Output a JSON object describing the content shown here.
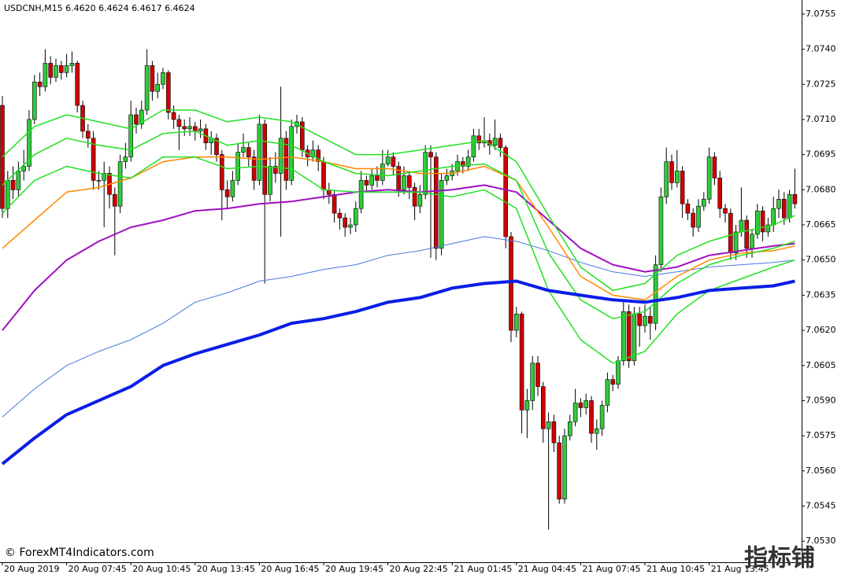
{
  "chart_data": {
    "type": "candlestick",
    "header": "USDCNH,M15  6.4620 6.4624 6.4617 6.4624",
    "watermark": "© ForexMT4Indicators.com",
    "corner_logo": "指标铺",
    "up_color": "#2fcc3a",
    "down_color": "#d00000",
    "wick_color": "#000000",
    "ylim": [
      7.0521,
      7.0761
    ],
    "yticks": [
      7.0755,
      {
        "value": 7.074,
        "label": "7.0740"
      },
      7.0725,
      {
        "value": 7.071,
        "label": "7.0710"
      },
      7.0695,
      {
        "value": 7.068,
        "label": "7.0680"
      },
      7.0665,
      {
        "value": 7.065,
        "label": "7.0650"
      },
      7.0635,
      {
        "value": 7.062,
        "label": "7.0620"
      },
      7.0605,
      {
        "value": 7.059,
        "label": "7.0590"
      },
      7.0575,
      {
        "value": 7.056,
        "label": "7.0560"
      },
      7.0545,
      {
        "value": 7.053,
        "label": "7.0530"
      }
    ],
    "categories": [
      "20 Aug 2019",
      null,
      null,
      null,
      null,
      null,
      null,
      null,
      null,
      null,
      null,
      null,
      "20 Aug 07:45",
      null,
      null,
      null,
      null,
      null,
      null,
      null,
      null,
      null,
      null,
      null,
      "20 Aug 10:45",
      null,
      null,
      null,
      null,
      null,
      null,
      null,
      null,
      null,
      null,
      null,
      "20 Aug 13:45",
      null,
      null,
      null,
      null,
      null,
      null,
      null,
      null,
      null,
      null,
      null,
      "20 Aug 16:45",
      null,
      null,
      null,
      null,
      null,
      null,
      null,
      null,
      null,
      null,
      null,
      "20 Aug 19:45",
      null,
      null,
      null,
      null,
      null,
      null,
      null,
      null,
      null,
      null,
      null,
      "20 Aug 22:45",
      null,
      null,
      null,
      null,
      null,
      null,
      null,
      null,
      null,
      null,
      null,
      "21 Aug 01:45",
      null,
      null,
      null,
      null,
      null,
      null,
      null,
      null,
      null,
      null,
      null,
      "21 Aug 04:45",
      null,
      null,
      null,
      null,
      null,
      null,
      null,
      null,
      null,
      null,
      null,
      "21 Aug 07:45",
      null,
      null,
      null,
      null,
      null,
      null,
      null,
      null,
      null,
      null,
      null,
      "21 Aug 10:45",
      null,
      null,
      null,
      null,
      null,
      null,
      null,
      null,
      null,
      null,
      null,
      "21 Aug 13:45",
      null,
      null,
      null,
      null,
      null,
      null,
      null,
      null,
      null,
      null,
      null,
      null,
      null,
      null,
      null,
      null
    ],
    "open": [
      7.0716,
      7.0672,
      7.0684,
      7.068,
      7.0688,
      7.069,
      7.071,
      7.0726,
      7.0724,
      7.0734,
      7.0728,
      7.0733,
      7.073,
      7.0733,
      7.0734,
      7.0716,
      7.0705,
      7.0702,
      7.0684,
      7.0684,
      7.0687,
      7.0678,
      7.0673,
      7.0692,
      7.0694,
      7.0712,
      7.0708,
      7.0714,
      7.0733,
      7.0722,
      7.0725,
      7.073,
      7.0713,
      7.071,
      7.0707,
      7.0706,
      7.0707,
      7.0705,
      7.0706,
      7.07,
      7.0702,
      7.0695,
      7.068,
      7.0677,
      7.0684,
      7.0696,
      7.0698,
      7.0694,
      7.0684,
      7.0708,
      7.0678,
      7.069,
      7.0687,
      7.0702,
      7.0684,
      7.0707,
      7.0709,
      7.0697,
      7.0694,
      7.0697,
      7.0692,
      7.068,
      7.0678,
      7.067,
      7.0668,
      7.0664,
      7.0665,
      7.0672,
      7.0684,
      7.0682,
      7.0686,
      7.0684,
      7.0691,
      7.0694,
      7.069,
      7.068,
      7.0686,
      7.0681,
      7.0673,
      7.0678,
      7.0696,
      7.0694,
      7.0655,
      7.0684,
      7.0686,
      7.0688,
      7.0692,
      7.069,
      7.0694,
      7.0703,
      7.07,
      7.0701,
      7.0699,
      7.0702,
      7.0698,
      7.066,
      7.062,
      7.0627,
      7.0586,
      7.059,
      7.0606,
      7.0596,
      7.0578,
      7.0581,
      7.0572,
      7.0548,
      7.0575,
      7.0581,
      7.0589,
      7.0587,
      7.059,
      7.0576,
      7.0578,
      7.0588,
      7.0599,
      7.0597,
      7.0607,
      7.0628,
      7.0607,
      7.0627,
      7.0622,
      7.0626,
      7.0623,
      7.0648,
      7.0677,
      7.0692,
      7.0683,
      7.0688,
      7.0674,
      7.067,
      7.0664,
      7.0673,
      7.0676,
      7.0694,
      7.0685,
      7.0672,
      7.067,
      7.0653,
      7.0662,
      7.0667,
      7.0655,
      7.0661,
      7.0671,
      7.0662,
      7.0665,
      7.0672,
      7.0676,
      7.0668,
      7.0678
    ],
    "high": [
      7.072,
      7.0688,
      7.069,
      7.0692,
      7.0697,
      7.0714,
      7.0729,
      7.073,
      7.074,
      7.0737,
      7.0736,
      7.0735,
      7.0738,
      7.0739,
      7.0735,
      7.0718,
      7.0708,
      7.0705,
      7.0688,
      7.0692,
      7.069,
      7.0681,
      7.0695,
      7.07,
      7.0718,
      7.0715,
      7.0718,
      7.074,
      7.0735,
      7.073,
      7.0732,
      7.0731,
      7.0716,
      7.0712,
      7.071,
      7.0711,
      7.0709,
      7.071,
      7.0708,
      7.0705,
      7.0704,
      7.0697,
      7.0684,
      7.0688,
      7.07,
      7.0704,
      7.07,
      7.0697,
      7.0712,
      7.071,
      7.0694,
      7.0696,
      7.0724,
      7.0705,
      7.071,
      7.0712,
      7.0711,
      7.0699,
      7.0701,
      7.0699,
      7.0694,
      7.0683,
      7.068,
      7.0672,
      7.067,
      7.0668,
      7.0675,
      7.0688,
      7.0686,
      7.0689,
      7.069,
      7.0697,
      7.0697,
      7.0696,
      7.0692,
      7.069,
      7.0688,
      7.0683,
      7.0682,
      7.0699,
      7.0699,
      7.0696,
      7.0687,
      7.0689,
      7.0691,
      7.0695,
      7.0694,
      7.0697,
      7.0706,
      7.0706,
      7.0711,
      7.0704,
      7.071,
      7.0704,
      7.0699,
      7.0662,
      7.063,
      7.0628,
      7.0595,
      7.0609,
      7.0609,
      7.0598,
      7.0585,
      7.0584,
      7.0575,
      7.0578,
      7.0584,
      7.0595,
      7.0591,
      7.0593,
      7.0592,
      7.0582,
      7.059,
      7.0602,
      7.0601,
      7.0609,
      7.0632,
      7.0631,
      7.063,
      7.063,
      7.0631,
      7.063,
      7.0652,
      7.0681,
      7.0698,
      7.0695,
      7.0697,
      7.069,
      7.0676,
      7.0672,
      7.0676,
      7.0679,
      7.0698,
      7.0696,
      7.0688,
      7.0674,
      7.0672,
      7.0665,
      7.0681,
      7.0669,
      7.0663,
      7.0674,
      7.0673,
      7.0668,
      7.0677,
      7.068,
      7.0679,
      7.068,
      7.0689
    ],
    "low": [
      7.0668,
      7.0668,
      7.0676,
      7.0677,
      7.0684,
      7.0688,
      7.0708,
      7.072,
      7.0722,
      7.0725,
      7.0726,
      7.0727,
      7.0728,
      7.073,
      7.0713,
      7.0702,
      7.0698,
      7.068,
      7.068,
      7.0664,
      7.0672,
      7.0652,
      7.067,
      7.0689,
      7.0692,
      7.0704,
      7.0706,
      7.0712,
      7.0718,
      7.0719,
      7.0723,
      7.071,
      7.0706,
      7.0697,
      7.0703,
      7.0703,
      7.0701,
      7.0702,
      7.0697,
      7.0695,
      7.0692,
      7.0667,
      7.0672,
      7.0675,
      7.0682,
      7.0694,
      7.069,
      7.068,
      7.0682,
      7.064,
      7.0675,
      7.0683,
      7.066,
      7.068,
      7.0682,
      7.0704,
      7.0694,
      7.069,
      7.0692,
      7.0688,
      7.0676,
      7.0674,
      7.0666,
      7.0663,
      7.066,
      7.0661,
      7.0662,
      7.067,
      7.0679,
      7.068,
      7.0681,
      7.0682,
      7.069,
      7.0686,
      7.0677,
      7.0678,
      7.0676,
      7.0667,
      7.067,
      7.0676,
      7.0651,
      7.065,
      7.0652,
      7.0682,
      7.0684,
      7.0686,
      7.0687,
      7.0688,
      7.0692,
      7.0697,
      7.0698,
      7.0695,
      7.0697,
      7.0694,
      7.0655,
      7.0615,
      7.0617,
      7.0576,
      7.0574,
      7.0586,
      7.0592,
      7.0572,
      7.0535,
      7.0568,
      7.0546,
      7.0546,
      7.0573,
      7.0579,
      7.0583,
      7.0584,
      7.0572,
      7.0569,
      7.0575,
      7.0585,
      7.0594,
      7.0595,
      7.0605,
      7.0604,
      7.0605,
      7.0613,
      7.0619,
      7.0616,
      7.062,
      7.0645,
      7.0674,
      7.068,
      7.0681,
      7.0668,
      7.0667,
      7.066,
      7.0662,
      7.0671,
      7.0674,
      7.0682,
      7.0668,
      7.0666,
      7.065,
      7.065,
      7.066,
      7.0651,
      7.0651,
      7.0659,
      7.0658,
      7.066,
      7.0662,
      7.0668,
      7.0665,
      7.0666,
      7.0672
    ],
    "close": [
      7.0672,
      7.0684,
      7.068,
      7.0688,
      7.069,
      7.071,
      7.0726,
      7.0724,
      7.0734,
      7.0728,
      7.0733,
      7.073,
      7.0733,
      7.0734,
      7.0716,
      7.0705,
      7.0702,
      7.0684,
      7.0684,
      7.0687,
      7.0678,
      7.0673,
      7.0692,
      7.0694,
      7.0712,
      7.0708,
      7.0714,
      7.0733,
      7.0722,
      7.0725,
      7.073,
      7.0713,
      7.071,
      7.0707,
      7.0706,
      7.0707,
      7.0705,
      7.0706,
      7.07,
      7.0702,
      7.0695,
      7.068,
      7.0677,
      7.0684,
      7.0696,
      7.0698,
      7.0694,
      7.0684,
      7.0708,
      7.0678,
      7.069,
      7.0687,
      7.0702,
      7.0684,
      7.0707,
      7.0709,
      7.0697,
      7.0694,
      7.0697,
      7.0692,
      7.068,
      7.0678,
      7.067,
      7.0668,
      7.0664,
      7.0665,
      7.0672,
      7.0684,
      7.0682,
      7.0686,
      7.0684,
      7.0691,
      7.0694,
      7.069,
      7.068,
      7.0686,
      7.0681,
      7.0673,
      7.0678,
      7.0696,
      7.0694,
      7.0655,
      7.0684,
      7.0686,
      7.0688,
      7.0692,
      7.069,
      7.0694,
      7.0703,
      7.07,
      7.0701,
      7.0699,
      7.0702,
      7.0698,
      7.066,
      7.062,
      7.0627,
      7.0586,
      7.059,
      7.0606,
      7.0596,
      7.0578,
      7.0581,
      7.0572,
      7.0548,
      7.0575,
      7.0581,
      7.0589,
      7.0587,
      7.059,
      7.0576,
      7.0578,
      7.0588,
      7.0599,
      7.0597,
      7.0607,
      7.0628,
      7.0607,
      7.0627,
      7.0622,
      7.0626,
      7.0623,
      7.0648,
      7.0677,
      7.0692,
      7.0683,
      7.0688,
      7.0674,
      7.067,
      7.0664,
      7.0673,
      7.0676,
      7.0694,
      7.0685,
      7.0672,
      7.067,
      7.0653,
      7.0662,
      7.0667,
      7.0655,
      7.0661,
      7.0671,
      7.0662,
      7.0665,
      7.0672,
      7.0676,
      7.0668,
      7.0678,
      7.0674
    ],
    "line_x": [
      0,
      6,
      12,
      18,
      24,
      30,
      36,
      42,
      48,
      54,
      60,
      66,
      72,
      78,
      84,
      90,
      96,
      102,
      108,
      114,
      120,
      126,
      132,
      138,
      144,
      148
    ],
    "lines": [
      {
        "color": "#4a78e0",
        "width": 1,
        "values": [
          7.0583,
          7.0595,
          7.0605,
          7.0611,
          7.0616,
          7.0623,
          7.0632,
          7.0636,
          7.0641,
          7.0643,
          7.0646,
          7.0648,
          7.0652,
          7.0654,
          7.0657,
          7.066,
          7.0658,
          7.0654,
          7.0649,
          7.0645,
          7.0643,
          7.0645,
          7.0647,
          7.0648,
          7.0649,
          7.065
        ]
      },
      {
        "color": "#a010c0",
        "width": 2,
        "values": [
          7.062,
          7.0637,
          7.065,
          7.0658,
          7.0664,
          7.0667,
          7.0671,
          7.0672,
          7.0674,
          7.0675,
          7.0677,
          7.0679,
          7.068,
          7.0679,
          7.068,
          7.0682,
          7.0679,
          7.0667,
          7.0655,
          7.0648,
          7.0645,
          7.0647,
          7.0652,
          7.0654,
          7.0656,
          7.0657
        ]
      },
      {
        "color": "#ff8800",
        "width": 1.5,
        "values": [
          7.0655,
          7.0667,
          7.0679,
          7.0681,
          7.0685,
          7.0692,
          7.0694,
          7.0694,
          7.0693,
          7.0694,
          7.0692,
          7.0689,
          7.0689,
          7.0687,
          7.0687,
          7.069,
          7.0684,
          7.0664,
          7.0643,
          7.0635,
          7.0633,
          7.0643,
          7.065,
          7.0653,
          7.0654,
          7.0656
        ]
      },
      {
        "color": "#22e022",
        "width": 1.5,
        "values": [
          7.0694,
          7.0707,
          7.0712,
          7.0709,
          7.0706,
          7.0714,
          7.0714,
          7.0709,
          7.0711,
          7.0709,
          7.0702,
          7.0695,
          7.0695,
          7.0697,
          7.0699,
          7.0701,
          7.0692,
          7.0669,
          7.0647,
          7.0637,
          7.064,
          7.0652,
          7.0658,
          7.0662,
          7.0665,
          7.0669
        ]
      },
      {
        "color": "#22e022",
        "width": 1.5,
        "values": [
          7.0682,
          7.0695,
          7.0702,
          7.0699,
          7.0697,
          7.0704,
          7.0705,
          7.0699,
          7.0701,
          7.0699,
          7.0692,
          7.0687,
          7.0686,
          7.0688,
          7.069,
          7.0691,
          7.0684,
          7.0653,
          7.0633,
          7.0625,
          7.0628,
          7.064,
          7.0648,
          7.0652,
          7.0655,
          7.0658
        ]
      },
      {
        "color": "#22e022",
        "width": 1.5,
        "values": [
          7.067,
          7.0684,
          7.069,
          7.0687,
          7.0685,
          7.0694,
          7.0694,
          7.0689,
          7.069,
          7.0689,
          7.068,
          7.0679,
          7.0679,
          7.0679,
          7.0677,
          7.068,
          7.0672,
          7.0637,
          7.0616,
          7.0606,
          7.0611,
          7.0627,
          7.0637,
          7.0642,
          7.0647,
          7.065
        ]
      },
      {
        "color": "#0a1ee6",
        "width": 4,
        "values": [
          7.0563,
          7.0574,
          7.0584,
          7.059,
          7.0596,
          7.0605,
          7.061,
          7.0614,
          7.0618,
          7.0623,
          7.0625,
          7.0628,
          7.0632,
          7.0634,
          7.0638,
          7.064,
          7.0641,
          7.0637,
          7.0635,
          7.0633,
          7.0632,
          7.0634,
          7.0637,
          7.0638,
          7.0639,
          7.0641
        ]
      }
    ]
  }
}
